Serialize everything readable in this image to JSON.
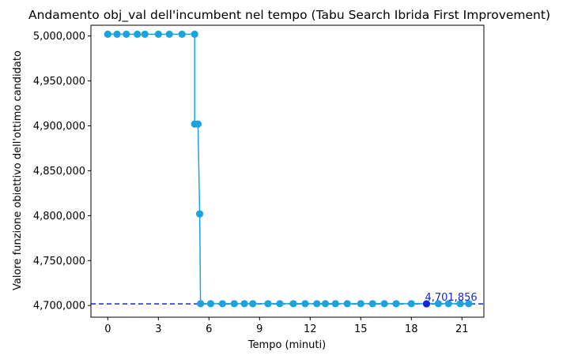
{
  "chart_data": {
    "type": "line",
    "title": "Andamento obj_val dell'incumbent nel tempo (Tabu Search Ibrida First Improvement)",
    "xlabel": "Tempo (minuti)",
    "ylabel": "Valore funzione obiettivo dell'ottimo candidato",
    "xlim": [
      -1.0,
      22.3
    ],
    "ylim": [
      4687000,
      5012000
    ],
    "x_ticks": [
      0,
      3,
      6,
      9,
      12,
      15,
      18,
      21
    ],
    "y_ticks": [
      4700000,
      4750000,
      4800000,
      4850000,
      4900000,
      4950000,
      5000000
    ],
    "y_tick_labels": [
      "4,700,000",
      "4,750,000",
      "4,800,000",
      "4,850,000",
      "4,900,000",
      "4,950,000",
      "5,000,000"
    ],
    "grid": false,
    "series": [
      {
        "color": "#1ca3dc",
        "x": [
          0.0,
          0.55,
          1.1,
          1.75,
          2.2,
          3.0,
          3.65,
          4.4,
          5.15,
          5.15,
          5.35,
          5.45,
          5.5,
          6.1,
          6.8,
          7.5,
          8.1,
          8.6,
          9.5,
          10.2,
          11.0,
          11.7,
          12.4,
          12.9,
          13.5,
          14.2,
          15.0,
          15.7,
          16.4,
          17.1,
          18.0,
          19.6,
          20.2,
          20.9,
          21.4
        ],
        "y": [
          5002000,
          5002000,
          5002000,
          5002000,
          5002000,
          5002000,
          5002000,
          5002000,
          5002000,
          4902000,
          4902000,
          4802000,
          4702000,
          4702000,
          4702000,
          4702000,
          4702000,
          4702000,
          4702000,
          4702000,
          4702000,
          4702000,
          4702000,
          4702000,
          4702000,
          4702000,
          4702000,
          4702000,
          4702000,
          4702000,
          4702000,
          4702000,
          4702000,
          4702000,
          4702000
        ]
      }
    ],
    "best_point": {
      "x": 18.9,
      "y": 4701856,
      "color": "#1428d8"
    },
    "reference_line": {
      "y": 4701856,
      "style": "dashed",
      "color": "#1428d8"
    },
    "annotation": {
      "text": "4,701,856",
      "color": "#1428d8"
    }
  }
}
